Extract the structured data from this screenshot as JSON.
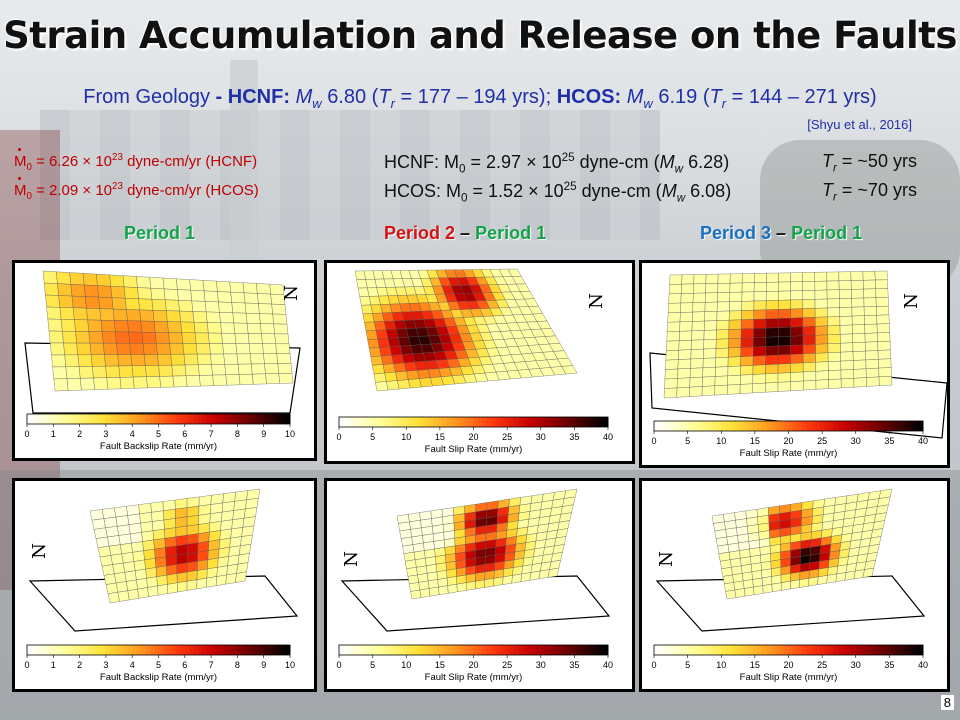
{
  "title": "Strain Accumulation and Release on the Faults",
  "geology": {
    "prefix": "From Geology",
    "sep": " - ",
    "hcnf_label": "HCNF:",
    "hcnf_mw": "6.80",
    "hcnf_tr": "177 – 194 yrs",
    "hcos_label": "HCOS:",
    "hcos_mw": "6.19",
    "hcos_tr": "144 – 271 yrs"
  },
  "citation": "[Shyu et al., 2016]",
  "rates": [
    {
      "value": "6.26",
      "exp": "23",
      "unit": "dyne-cm/yr",
      "fault": "(HCNF)"
    },
    {
      "value": "2.09",
      "exp": "23",
      "unit": "dyne-cm/yr",
      "fault": "(HCOS)"
    }
  ],
  "moments": [
    {
      "fault": "HCNF",
      "value": "2.97",
      "exp": "25",
      "mw": "6.28",
      "tr": "~50 yrs"
    },
    {
      "fault": "HCOS",
      "value": "1.52",
      "exp": "25",
      "mw": "6.08",
      "tr": "~70 yrs"
    }
  ],
  "periods": [
    {
      "label": "Period 1"
    },
    {
      "a": "Period 2",
      "dash": "–",
      "b": "Period 1"
    },
    {
      "a": "Period 3",
      "dash": "–",
      "b": "Period 1"
    }
  ],
  "panels": [
    {
      "label": "Fault Backslip Rate (mm/yr)",
      "ticks": [
        "0",
        "1",
        "2",
        "3",
        "4",
        "5",
        "6",
        "7",
        "8",
        "9",
        "10"
      ],
      "north": "N"
    },
    {
      "label": "Fault Slip Rate (mm/yr)",
      "ticks": [
        "0",
        "5",
        "10",
        "15",
        "20",
        "25",
        "30",
        "35",
        "40"
      ],
      "north": "N"
    },
    {
      "label": "Fault Slip Rate (mm/yr)",
      "ticks": [
        "0",
        "5",
        "10",
        "15",
        "20",
        "25",
        "30",
        "35",
        "40"
      ],
      "north": "N"
    },
    {
      "label": "Fault Backslip Rate (mm/yr)",
      "ticks": [
        "0",
        "1",
        "2",
        "3",
        "4",
        "5",
        "6",
        "7",
        "8",
        "9",
        "10"
      ],
      "north": "N"
    },
    {
      "label": "Fault Slip Rate (mm/yr)",
      "ticks": [
        "0",
        "5",
        "10",
        "15",
        "20",
        "25",
        "30",
        "35",
        "40"
      ],
      "north": "N"
    },
    {
      "label": "Fault Slip Rate (mm/yr)",
      "ticks": [
        "0",
        "5",
        "10",
        "15",
        "20",
        "25",
        "30",
        "35",
        "40"
      ],
      "north": "N"
    }
  ],
  "page_number": "8",
  "colors": {
    "hot_scale": [
      "#ffffff",
      "#ffff9a",
      "#ffe23a",
      "#ff9a1f",
      "#ff3a10",
      "#c80000",
      "#6a0000",
      "#000000"
    ]
  }
}
